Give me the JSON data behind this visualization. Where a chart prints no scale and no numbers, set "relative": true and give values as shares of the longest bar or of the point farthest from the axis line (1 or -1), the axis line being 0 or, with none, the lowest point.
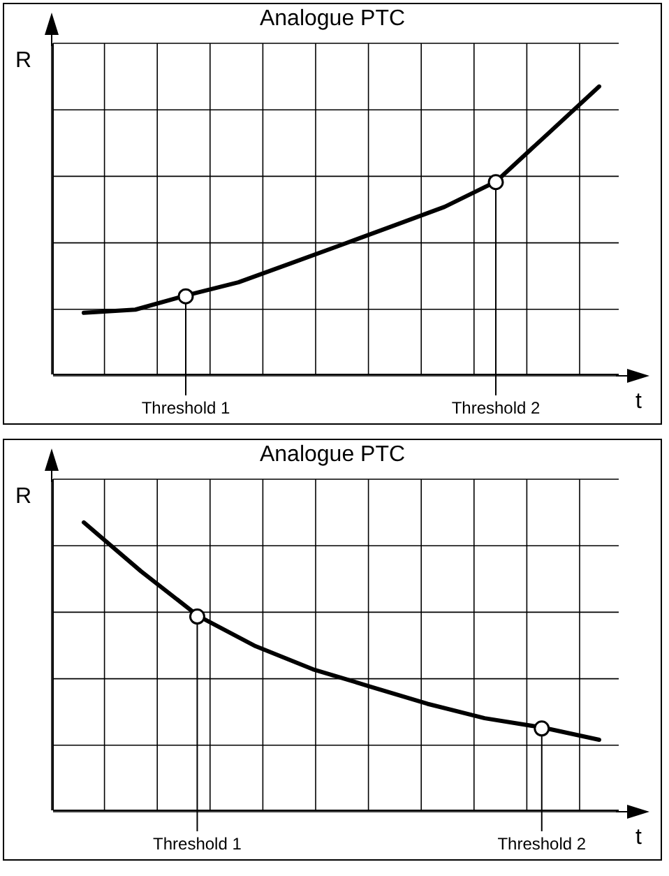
{
  "chart_data": [
    {
      "type": "line",
      "title": "Analogue PTC",
      "xlabel": "t",
      "ylabel": "R",
      "relative": true,
      "grid": true,
      "legend": false,
      "marker": "none",
      "line_style": "solid",
      "categories": [
        null,
        null,
        null,
        null,
        null,
        null,
        null,
        null,
        null,
        null,
        null
      ],
      "series": [
        {
          "color": "#000000",
          "values": [
            0.214,
            0.225,
            0.275,
            0.32,
            0.385,
            0.45,
            0.516,
            0.582,
            0.67,
            0.835,
            1
          ]
        }
      ],
      "annotations": [
        {
          "text": "Threshold 1",
          "y": 0.275
        },
        {
          "text": "Threshold 2",
          "y": 0.67
        }
      ]
    },
    {
      "type": "line",
      "title": "Analogue PTC",
      "xlabel": "t",
      "ylabel": "R",
      "relative": true,
      "grid": true,
      "legend": false,
      "marker": "none",
      "line_style": "solid",
      "categories": [
        null,
        null,
        null,
        null,
        null,
        null,
        null,
        null,
        null,
        null
      ],
      "series": [
        {
          "color": "#000000",
          "values": [
            1,
            0.83,
            0.675,
            0.57,
            0.49,
            0.43,
            0.37,
            0.32,
            0.288,
            0.245
          ]
        }
      ],
      "annotations": [
        {
          "text": "Threshold 1",
          "y": 0.675
        },
        {
          "text": "Threshold 2",
          "y": 0.288
        }
      ]
    }
  ]
}
